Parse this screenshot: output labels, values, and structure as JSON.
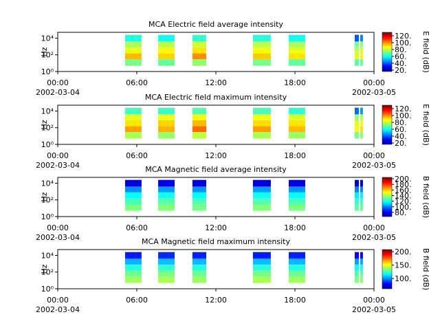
{
  "chart_data": [
    {
      "type": "spectrogram",
      "title": "MCA  Electric field average intensity",
      "ylabel": "Hz",
      "clabel": "E field (dB)",
      "colormap": "jet",
      "log_y": true,
      "xlim": [
        0,
        24
      ],
      "xticks": [
        {
          "value": 0,
          "label": "00:00"
        },
        {
          "value": 6,
          "label": "06:00"
        },
        {
          "value": 12,
          "label": "12:00"
        },
        {
          "value": 18,
          "label": "18:00"
        },
        {
          "value": 24,
          "label": "00:00"
        }
      ],
      "xtick_dates": [
        {
          "value": 0,
          "label": "2002-03-04"
        },
        {
          "value": 24,
          "label": "2002-03-05"
        }
      ],
      "ylim": [
        1,
        50000
      ],
      "yticks": [
        {
          "value": 1,
          "label": "10⁰"
        },
        {
          "value": 100,
          "label": "10²"
        },
        {
          "value": 10000,
          "label": "10⁴"
        }
      ],
      "clim": [
        16,
        130
      ],
      "cticks": [
        {
          "value": 20,
          "label": "20."
        },
        {
          "value": 40,
          "label": "40."
        },
        {
          "value": 60,
          "label": "60."
        },
        {
          "value": 80,
          "label": "80."
        },
        {
          "value": 100,
          "label": "100."
        },
        {
          "value": 120,
          "label": "120."
        }
      ],
      "freq_bins": [
        5,
        30,
        150,
        800,
        4000,
        25000
      ],
      "segments": [
        {
          "start": 5.11,
          "end": 6.36,
          "values": [
            72,
            95,
            85,
            78,
            62
          ]
        },
        {
          "start": 7.62,
          "end": 8.87,
          "values": [
            70,
            92,
            88,
            80,
            60
          ]
        },
        {
          "start": 10.22,
          "end": 11.27,
          "values": [
            75,
            100,
            90,
            82,
            64
          ]
        },
        {
          "start": 14.81,
          "end": 16.17,
          "values": [
            72,
            93,
            86,
            80,
            63
          ]
        },
        {
          "start": 17.53,
          "end": 18.78,
          "values": [
            70,
            90,
            85,
            78,
            60
          ]
        },
        {
          "start": 22.54,
          "end": 22.85,
          "values": [
            68,
            85,
            80,
            72,
            40
          ]
        },
        {
          "start": 22.95,
          "end": 23.16,
          "values": [
            70,
            88,
            82,
            75,
            45
          ]
        }
      ]
    },
    {
      "type": "spectrogram",
      "title": "MCA  Electric field maximum intensity",
      "ylabel": "Hz",
      "clabel": "E field (dB)",
      "colormap": "jet",
      "log_y": true,
      "xlim": [
        0,
        24
      ],
      "xticks": [
        {
          "value": 0,
          "label": "00:00"
        },
        {
          "value": 6,
          "label": "06:00"
        },
        {
          "value": 12,
          "label": "12:00"
        },
        {
          "value": 18,
          "label": "18:00"
        },
        {
          "value": 24,
          "label": "00:00"
        }
      ],
      "xtick_dates": [
        {
          "value": 0,
          "label": "2002-03-04"
        },
        {
          "value": 24,
          "label": "2002-03-05"
        }
      ],
      "ylim": [
        1,
        50000
      ],
      "yticks": [
        {
          "value": 1,
          "label": "10⁰"
        },
        {
          "value": 100,
          "label": "10²"
        },
        {
          "value": 10000,
          "label": "10⁴"
        }
      ],
      "clim": [
        16,
        130
      ],
      "cticks": [
        {
          "value": 20,
          "label": "20."
        },
        {
          "value": 40,
          "label": "40."
        },
        {
          "value": 60,
          "label": "60."
        },
        {
          "value": 80,
          "label": "80."
        },
        {
          "value": 100,
          "label": "100."
        },
        {
          "value": 120,
          "label": "120."
        }
      ],
      "freq_bins": [
        5,
        30,
        150,
        800,
        4000,
        25000
      ],
      "segments": [
        {
          "start": 5.11,
          "end": 6.36,
          "values": [
            78,
            98,
            90,
            85,
            66
          ]
        },
        {
          "start": 7.62,
          "end": 8.87,
          "values": [
            76,
            96,
            92,
            86,
            65
          ]
        },
        {
          "start": 10.22,
          "end": 11.27,
          "values": [
            80,
            104,
            95,
            88,
            68
          ]
        },
        {
          "start": 14.81,
          "end": 16.17,
          "values": [
            78,
            98,
            91,
            86,
            67
          ]
        },
        {
          "start": 17.53,
          "end": 18.78,
          "values": [
            76,
            95,
            90,
            84,
            64
          ]
        },
        {
          "start": 22.54,
          "end": 22.85,
          "values": [
            72,
            88,
            84,
            76,
            42
          ]
        },
        {
          "start": 22.95,
          "end": 23.16,
          "values": [
            74,
            90,
            86,
            78,
            48
          ]
        }
      ]
    },
    {
      "type": "spectrogram",
      "title": "MCA  Magnetic field average intensity",
      "ylabel": "Hz",
      "clabel": "B field (dB)",
      "colormap": "jet",
      "log_y": true,
      "xlim": [
        0,
        24
      ],
      "xticks": [
        {
          "value": 0,
          "label": "00:00"
        },
        {
          "value": 6,
          "label": "06:00"
        },
        {
          "value": 12,
          "label": "12:00"
        },
        {
          "value": 18,
          "label": "18:00"
        },
        {
          "value": 24,
          "label": "00:00"
        }
      ],
      "xtick_dates": [
        {
          "value": 0,
          "label": "2002-03-04"
        },
        {
          "value": 24,
          "label": "2002-03-05"
        }
      ],
      "ylim": [
        1,
        50000
      ],
      "yticks": [
        {
          "value": 1,
          "label": "10⁰"
        },
        {
          "value": 100,
          "label": "10²"
        },
        {
          "value": 10000,
          "label": "10⁴"
        }
      ],
      "clim": [
        65,
        205
      ],
      "cticks": [
        {
          "value": 80,
          "label": "80."
        },
        {
          "value": 100,
          "label": "100."
        },
        {
          "value": 120,
          "label": "120."
        },
        {
          "value": 140,
          "label": "140."
        },
        {
          "value": 160,
          "label": "160."
        },
        {
          "value": 180,
          "label": "180."
        },
        {
          "value": 200,
          "label": "200."
        }
      ],
      "freq_bins": [
        5,
        30,
        150,
        800,
        4000,
        25000
      ],
      "segments": [
        {
          "start": 5.11,
          "end": 6.36,
          "values": [
            135,
            128,
            118,
            102,
            78
          ]
        },
        {
          "start": 7.62,
          "end": 8.87,
          "values": [
            136,
            130,
            120,
            104,
            80
          ]
        },
        {
          "start": 10.22,
          "end": 11.27,
          "values": [
            134,
            128,
            118,
            103,
            79
          ]
        },
        {
          "start": 14.81,
          "end": 16.17,
          "values": [
            136,
            129,
            119,
            104,
            78
          ]
        },
        {
          "start": 17.53,
          "end": 18.78,
          "values": [
            135,
            128,
            118,
            103,
            79
          ]
        },
        {
          "start": 22.54,
          "end": 22.85,
          "values": [
            130,
            124,
            115,
            100,
            76
          ]
        },
        {
          "start": 22.95,
          "end": 23.16,
          "values": [
            132,
            126,
            116,
            101,
            77
          ]
        }
      ]
    },
    {
      "type": "spectrogram",
      "title": "MCA  Magnetic field maximum intensity",
      "ylabel": "Hz",
      "clabel": "B field (dB)",
      "colormap": "jet",
      "log_y": true,
      "xlim": [
        0,
        24
      ],
      "xticks": [
        {
          "value": 0,
          "label": "00:00"
        },
        {
          "value": 6,
          "label": "06:00"
        },
        {
          "value": 12,
          "label": "12:00"
        },
        {
          "value": 18,
          "label": "18:00"
        },
        {
          "value": 24,
          "label": "00:00"
        }
      ],
      "xtick_dates": [
        {
          "value": 0,
          "label": "2002-03-04"
        },
        {
          "value": 24,
          "label": "2002-03-05"
        }
      ],
      "ylim": [
        1,
        50000
      ],
      "yticks": [
        {
          "value": 1,
          "label": "10⁰"
        },
        {
          "value": 100,
          "label": "10²"
        },
        {
          "value": 10000,
          "label": "10⁴"
        }
      ],
      "clim": [
        62,
        208
      ],
      "cticks": [
        {
          "value": 100,
          "label": "100."
        },
        {
          "value": 150,
          "label": "150."
        },
        {
          "value": 200,
          "label": "200."
        }
      ],
      "freq_bins": [
        5,
        30,
        150,
        800,
        4000,
        25000
      ],
      "segments": [
        {
          "start": 5.11,
          "end": 6.36,
          "values": [
            140,
            132,
            122,
            106,
            84
          ]
        },
        {
          "start": 7.62,
          "end": 8.87,
          "values": [
            141,
            134,
            124,
            108,
            86
          ]
        },
        {
          "start": 10.22,
          "end": 11.27,
          "values": [
            139,
            132,
            122,
            107,
            85
          ]
        },
        {
          "start": 14.81,
          "end": 16.17,
          "values": [
            141,
            133,
            123,
            108,
            84
          ]
        },
        {
          "start": 17.53,
          "end": 18.78,
          "values": [
            140,
            132,
            122,
            107,
            85
          ]
        },
        {
          "start": 22.54,
          "end": 22.85,
          "values": [
            135,
            128,
            118,
            103,
            80
          ]
        },
        {
          "start": 22.95,
          "end": 23.16,
          "values": [
            137,
            130,
            120,
            105,
            82
          ]
        }
      ]
    }
  ]
}
